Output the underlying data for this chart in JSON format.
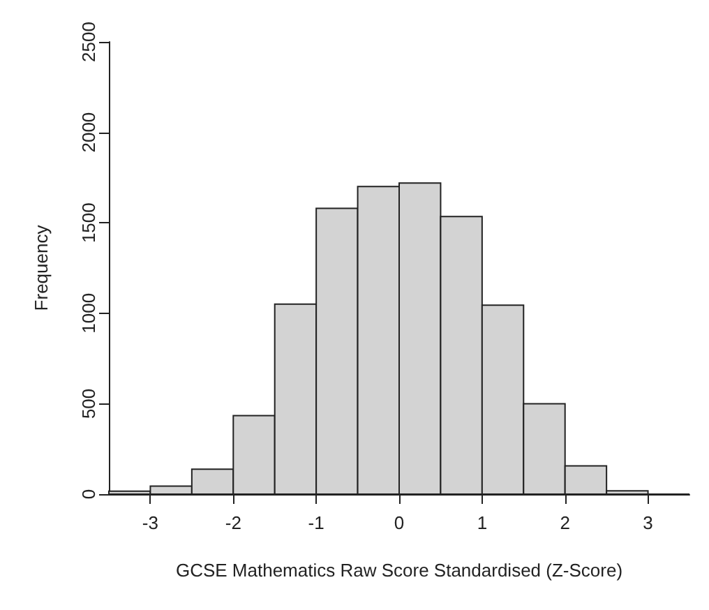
{
  "chart_data": {
    "type": "histogram",
    "xlabel": "GCSE Mathematics Raw Score Standardised (Z-Score)",
    "ylabel": "Frequency",
    "bins": [
      -3.5,
      -3,
      -2.5,
      -2,
      -1.5,
      -1,
      -0.5,
      0,
      0.5,
      1,
      1.5,
      2,
      2.5,
      3,
      3.5
    ],
    "values": [
      16,
      44,
      138,
      434,
      1050,
      1580,
      1700,
      1720,
      1535,
      1045,
      500,
      156,
      18,
      0
    ],
    "color": "#d3d3d3",
    "xlim": [
      -3.5,
      3.5
    ],
    "xticks": [
      -3,
      -2,
      -1,
      0,
      1,
      2,
      3
    ],
    "ylim": [
      0,
      2500
    ],
    "yticks": [
      0,
      500,
      1000,
      1500,
      2000,
      2500
    ],
    "grid": false
  }
}
